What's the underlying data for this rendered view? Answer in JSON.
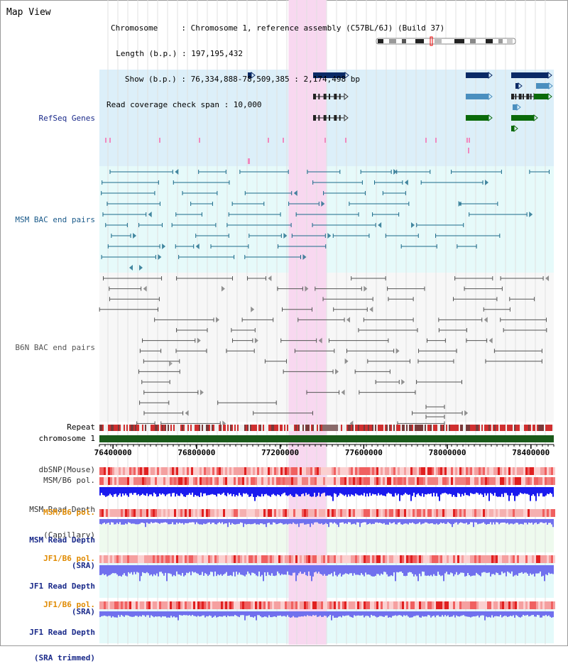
{
  "map": {
    "title": "Map View",
    "chromosome_line": "Chromosome     : Chromosome 1, reference assembly (C57BL/6J) (Build 37)",
    "length_line": "  Length (b.p.) : 197,195,432",
    "show_line": "   Show (b.p.) : 76,334,888-78,509,385 : 2,174,498 bp",
    "coverage_line": "Read coverage check span : 10,000"
  },
  "tracks": {
    "refseq": "RefSeq Genes",
    "msm_bac": "MSM BAC end pairs",
    "b6n_bac": "B6N BAC end pairs",
    "repeat": "Repeat",
    "chromosome": "chromosome 1",
    "dbsnp": "dbSNP(Mouse)",
    "msm_b6_pol_1": "MSM/B6 pol.",
    "msm_depth_cap_1": "MSM Read Depth",
    "msm_depth_cap_2": "(Capillary)",
    "msm_b6_pol_2": "MSM/B6 pol.",
    "msm_depth_sra_1": "MSM Read Depth",
    "msm_depth_sra_2": "(SRA)",
    "jf1_b6_pol_1": "JF1/B6 pol.",
    "jf1_depth_sra_1": "JF1 Read Depth",
    "jf1_depth_sra_2": "(SRA)",
    "jf1_b6_pol_2": "JF1/B6 pol.",
    "jf1_depth_trim_1": "JF1 Read Depth",
    "jf1_depth_trim_2": "(SRA trimmed)"
  },
  "axis": {
    "ticks": [
      "76400000",
      "76800000",
      "77200000",
      "77600000",
      "78000000",
      "78400000"
    ],
    "tick_values": [
      76400000,
      76800000,
      77200000,
      77600000,
      78000000,
      78400000
    ],
    "range": [
      76334888,
      78509385
    ]
  },
  "highlight": {
    "start": 77240000,
    "end": 77420000
  },
  "colors": {
    "refseq_bg": "#dceff9",
    "msm_bac_bg": "#e6fafa",
    "b6n_bg": "#f7f7f7",
    "highlight": "#f8d8f0",
    "gene_navy": "#0a2a66",
    "gene_steel": "#4a8fbf",
    "gene_green": "#0a6a0a",
    "msm_line": "#1a6a8a",
    "b6n_line": "#555555",
    "repeat_red": "#d03030",
    "chrom_green": "#1a5a1a",
    "snp_pink": "#f4a0a0",
    "depth_blue": "#1a1aee",
    "depth_light": "#7070ee",
    "label_navy": "#1a2a8a",
    "label_orange": "#e08a00",
    "label_teal": "#1a5a8a"
  }
}
